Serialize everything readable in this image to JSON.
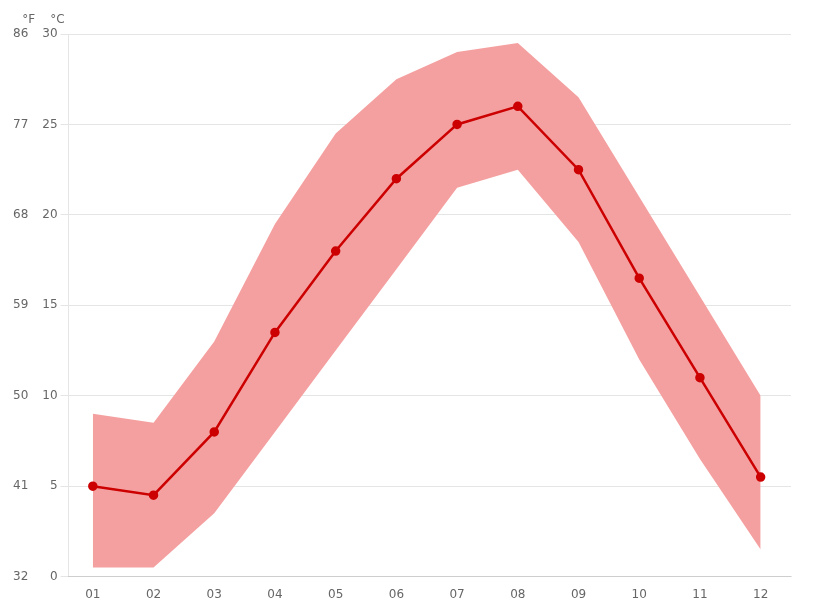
{
  "chart_data": {
    "type": "line",
    "x": [
      1,
      2,
      3,
      4,
      5,
      6,
      7,
      8,
      9,
      10,
      11,
      12
    ],
    "xlim": [
      0.6,
      12.5
    ],
    "xticks": [
      {
        "value": 1,
        "label": "01"
      },
      {
        "value": 2,
        "label": "02"
      },
      {
        "value": 3,
        "label": "03"
      },
      {
        "value": 4,
        "label": "04"
      },
      {
        "value": 5,
        "label": "05"
      },
      {
        "value": 6,
        "label": "06"
      },
      {
        "value": 7,
        "label": "07"
      },
      {
        "value": 8,
        "label": "08"
      },
      {
        "value": 9,
        "label": "09"
      },
      {
        "value": 10,
        "label": "10"
      },
      {
        "value": 11,
        "label": "11"
      },
      {
        "value": 12,
        "label": "12"
      }
    ],
    "ylim": [
      0,
      30
    ],
    "yticks": [
      0,
      5,
      10,
      15,
      20,
      25,
      30
    ],
    "ylabel": "°C",
    "y2lim": [
      32,
      86
    ],
    "y2ticks": [
      32,
      41,
      50,
      59,
      68,
      77,
      86
    ],
    "y2label": "°F",
    "grid": "y",
    "series": [
      {
        "type": "band",
        "color": "#f5a0a0",
        "lower": [
          0.5,
          0.5,
          3.5,
          8.0,
          12.5,
          17.0,
          21.5,
          22.5,
          18.5,
          12.0,
          6.5,
          1.5
        ],
        "upper": [
          9.0,
          8.5,
          13.0,
          19.5,
          24.5,
          27.5,
          29.0,
          29.5,
          26.5,
          21.0,
          15.5,
          10.0
        ]
      },
      {
        "type": "line",
        "color": "#cc0000",
        "marker": "circle",
        "values": [
          5.0,
          4.5,
          8.0,
          13.5,
          18.0,
          22.0,
          25.0,
          26.0,
          22.5,
          16.5,
          11.0,
          5.5
        ]
      }
    ]
  }
}
